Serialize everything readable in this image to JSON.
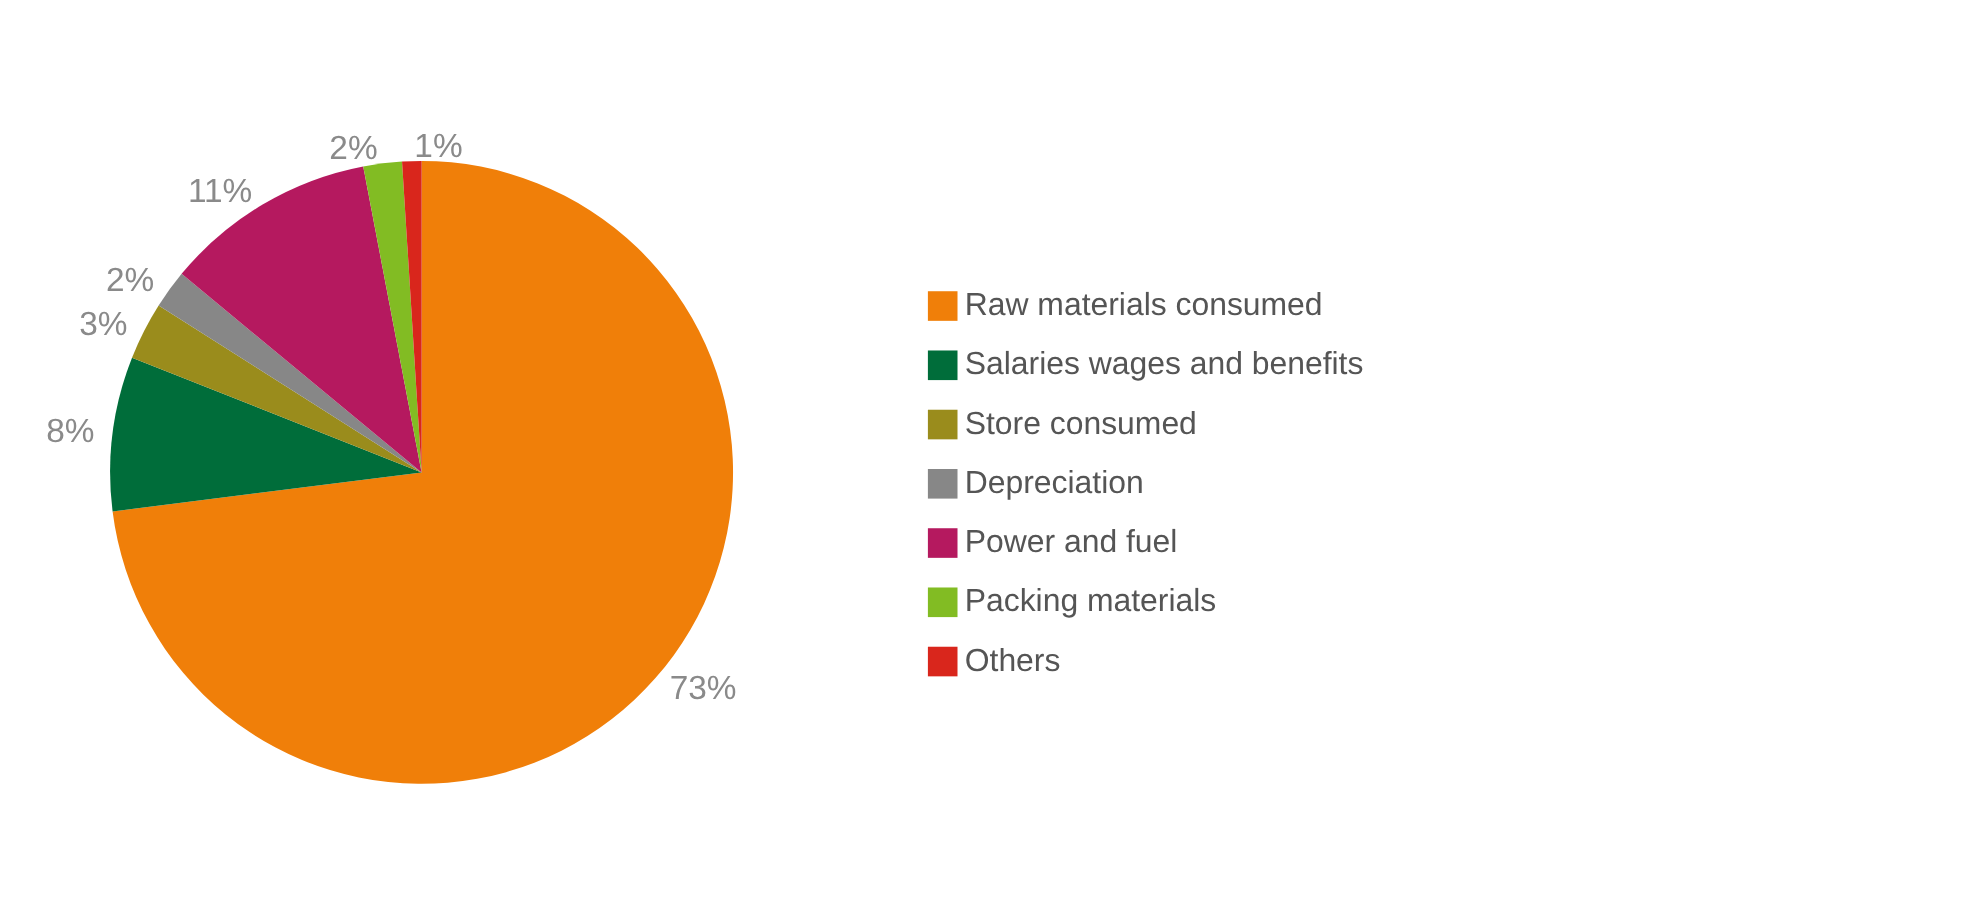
{
  "chart_data": {
    "type": "pie",
    "categories": [
      "Raw materials consumed",
      "Salaries wages and benefits",
      "Store consumed",
      "Depreciation",
      "Power and fuel",
      "Packing materials",
      "Others"
    ],
    "values": [
      73,
      8,
      3,
      2,
      11,
      2,
      1
    ],
    "colors": [
      "#f07f09",
      "#006d3a",
      "#9a8c1c",
      "#878787",
      "#b5195f",
      "#82bc23",
      "#d9261c"
    ],
    "value_labels": [
      "73%",
      "8%",
      "3%",
      "2%",
      "11%",
      "2%",
      "1%"
    ],
    "legend": "right"
  }
}
